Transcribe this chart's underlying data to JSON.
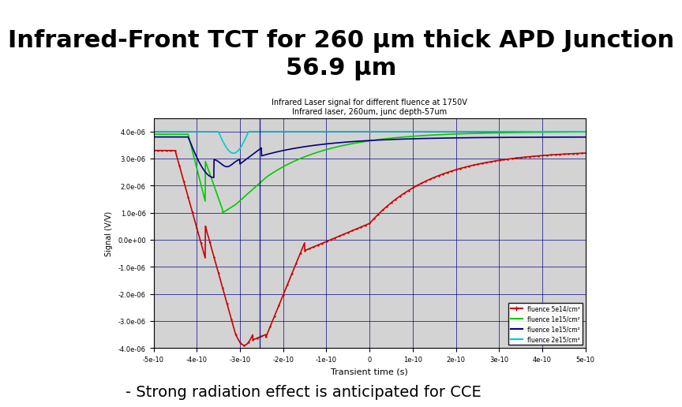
{
  "title": "Infrared-Front TCT for 260 μm thick APD Junction\n56.9 μm",
  "title_bg_color": "#f08080",
  "title_fontsize": 22,
  "subtitle_note": "- Strong radiation effect is anticipated for CCE",
  "subtitle_fontsize": 14,
  "inner_title1": "Infrared Laser signal for different fluence at 1750V",
  "inner_title2": "Infrared laser, 260um, junc depth-57um",
  "plot_bg_color": "#d3d3d3",
  "outer_bg_color": "#ffffff",
  "xlabel": "Transient time (s)",
  "ylabel": "Signal (V/V)",
  "legend_labels": [
    "fluence 5e14/cm^2",
    "fluence 1e15/cm^2",
    "fluence 1e15/cm^2",
    "fluence 2e15/cm^2"
  ],
  "legend_colors": [
    "#cc0000",
    "#00cc00",
    "#000080",
    "#00cccc"
  ],
  "xlim": [
    -5e-10,
    5e-10
  ],
  "ylim": [
    -4e-06,
    4.5e-06
  ],
  "grid_color": "#00008b",
  "line_width": 1.2
}
